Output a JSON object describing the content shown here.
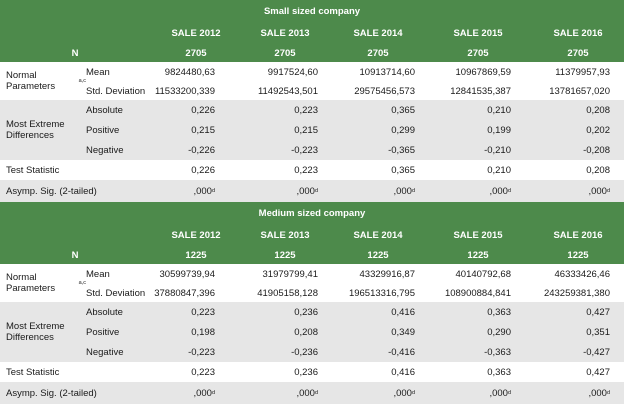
{
  "tables": [
    {
      "title": "Small sized company",
      "n_label": "N",
      "years": [
        "SALE 2012",
        "SALE 2013",
        "SALE 2014",
        "SALE 2015",
        "SALE 2016"
      ],
      "n_values": [
        "2705",
        "2705",
        "2705",
        "2705",
        "2705"
      ],
      "normal_label": "Normal Parameters",
      "normal_sup": "a,c",
      "mean_label": "Mean",
      "mean": [
        "9824480,63",
        "9917524,60",
        "10913714,60",
        "10967869,59",
        "11379957,93"
      ],
      "std_label": "Std. Deviation",
      "std": [
        "11533200,339",
        "11492543,501",
        "29575456,573",
        "12841535,387",
        "13781657,020"
      ],
      "extreme_label": "Most Extreme Differences",
      "absolute_label": "Absolute",
      "absolute": [
        "0,226",
        "0,223",
        "0,365",
        "0,210",
        "0,208"
      ],
      "positive_label": "Positive",
      "positive": [
        "0,215",
        "0,215",
        "0,299",
        "0,199",
        "0,202"
      ],
      "negative_label": "Negative",
      "negative": [
        "-0,226",
        "-0,223",
        "-0,365",
        "-0,210",
        "-0,208"
      ],
      "test_label": "Test Statistic",
      "test": [
        "0,226",
        "0,223",
        "0,365",
        "0,210",
        "0,208"
      ],
      "asymp_label": "Asymp. Sig. (2-tailed)",
      "asymp": [
        ",000",
        ",000",
        ",000",
        ",000",
        ",000"
      ],
      "asymp_sup": "d"
    },
    {
      "title": "Medium sized company",
      "n_label": "N",
      "years": [
        "SALE 2012",
        "SALE 2013",
        "SALE 2014",
        "SALE 2015",
        "SALE 2016"
      ],
      "n_values": [
        "1225",
        "1225",
        "1225",
        "1225",
        "1225"
      ],
      "normal_label": "Normal Parameters",
      "normal_sup": "a,c",
      "mean_label": "Mean",
      "mean": [
        "30599739,94",
        "31979799,41",
        "43329916,87",
        "40140792,68",
        "46333426,46"
      ],
      "std_label": "Std. Deviation",
      "std": [
        "37880847,396",
        "41905158,128",
        "196513316,795",
        "108900884,841",
        "243259381,380"
      ],
      "extreme_label": "Most Extreme Differences",
      "absolute_label": "Absolute",
      "absolute": [
        "0,223",
        "0,236",
        "0,416",
        "0,363",
        "0,427"
      ],
      "positive_label": "Positive",
      "positive": [
        "0,198",
        "0,208",
        "0,349",
        "0,290",
        "0,351"
      ],
      "negative_label": "Negative",
      "negative": [
        "-0,223",
        "-0,236",
        "-0,416",
        "-0,363",
        "-0,427"
      ],
      "test_label": "Test Statistic",
      "test": [
        "0,223",
        "0,236",
        "0,416",
        "0,363",
        "0,427"
      ],
      "asymp_label": "Asymp. Sig. (2-tailed)",
      "asymp": [
        ",000",
        ",000",
        ",000",
        ",000",
        ",000"
      ],
      "asymp_sup": "d"
    }
  ]
}
